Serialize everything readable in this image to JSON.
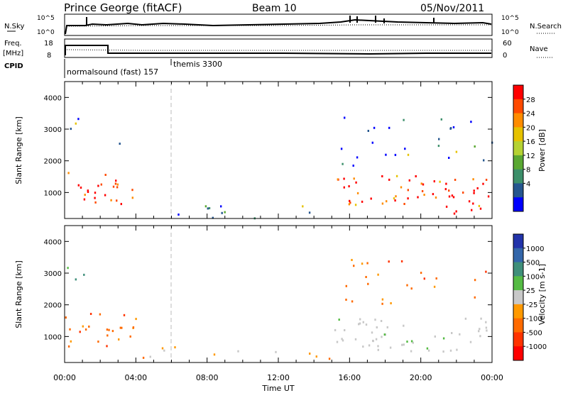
{
  "header": {
    "station": "Prince George (fitACF)",
    "beam": "Beam 10",
    "date": "05/Nov/2011"
  },
  "strip": {
    "nsky_label": "N.Sky",
    "nsky_ticks": [
      "10^5",
      "10^0"
    ],
    "nsearch_label": "N.Search",
    "nsearch_ticks": [
      "10^5",
      "10^0"
    ],
    "freq_label_1": "Freq.",
    "freq_label_2": "[MHz]",
    "freq_ticks": [
      "18",
      "8"
    ],
    "nave_label": "Nave",
    "nave_ticks": [
      "60",
      "0"
    ],
    "cpid_label": "CPID",
    "cpid_segments": [
      "normalsound (fast) 157",
      "themis 3300"
    ]
  },
  "time_axis": {
    "label": "Time UT",
    "ticks": [
      "00:00",
      "04:00",
      "08:00",
      "12:00",
      "16:00",
      "20:00",
      "00:00"
    ]
  },
  "power_colorbar": {
    "label": "Power [dB]",
    "ticks": [
      "28",
      "24",
      "20",
      "16",
      "12",
      "8",
      "4"
    ],
    "colors": [
      "#ff0000",
      "#ff4a00",
      "#ff8c00",
      "#e6c200",
      "#b5d233",
      "#5aa832",
      "#3c8f6a",
      "#25568f",
      "#0000ff"
    ]
  },
  "velocity_colorbar": {
    "label": "Velocity [m s-1]",
    "ticks": [
      "1000",
      "500",
      "100",
      "25",
      "-25",
      "-100",
      "-500",
      "-1000"
    ],
    "colors": [
      "#2233aa",
      "#3366aa",
      "#3f8f7a",
      "#55bb44",
      "#c8c8c8",
      "#ff9900",
      "#ff6a00",
      "#ff3300",
      "#ff0000"
    ]
  },
  "chart_data": [
    {
      "type": "heatmap",
      "title": "Power",
      "xlabel": "Time UT",
      "ylabel": "Slant Range [km]",
      "xlim": [
        0,
        24
      ],
      "ylim": [
        180,
        4500
      ],
      "y_ticks": [
        1000,
        2000,
        3000,
        4000
      ],
      "colorbar": "Power [dB]",
      "scatter_regions": [
        {
          "t": [
            0,
            3.9
          ],
          "r": [
            650,
            1750
          ],
          "power": "high"
        },
        {
          "t": [
            0,
            1.6
          ],
          "r": [
            2600,
            3500
          ],
          "power": "low"
        },
        {
          "t": [
            3.0,
            3.8
          ],
          "r": [
            2000,
            3000
          ],
          "power": "low"
        },
        {
          "t": [
            4.0,
            15.0
          ],
          "r": [
            180,
            700
          ],
          "power": "low"
        },
        {
          "t": [
            15.0,
            24.0
          ],
          "r": [
            550,
            1550
          ],
          "power": "high"
        },
        {
          "t": [
            15.5,
            24.0
          ],
          "r": [
            1800,
            3400
          ],
          "power": "low"
        },
        {
          "t": [
            21.5,
            23.5
          ],
          "r": [
            300,
            1100
          ],
          "power": "high"
        }
      ]
    },
    {
      "type": "heatmap",
      "title": "Velocity",
      "xlabel": "Time UT",
      "ylabel": "Slant Range [km]",
      "xlim": [
        0,
        24
      ],
      "ylim": [
        180,
        4500
      ],
      "y_ticks": [
        1000,
        2000,
        3000,
        4000
      ],
      "colorbar": "Velocity [m s-1]",
      "scatter_regions": [
        {
          "t": [
            0,
            4.0
          ],
          "r": [
            700,
            1750
          ],
          "velocity": "-100 to -500"
        },
        {
          "t": [
            0,
            1.5
          ],
          "r": [
            2600,
            3500
          ],
          "velocity": "25 to 500"
        },
        {
          "t": [
            4.0,
            15.0
          ],
          "r": [
            180,
            700
          ],
          "velocity": "-25 to -100"
        },
        {
          "t": [
            15.0,
            24.0
          ],
          "r": [
            550,
            1600
          ],
          "velocity": "-25 to 25"
        },
        {
          "t": [
            15.5,
            24.0
          ],
          "r": [
            2000,
            3500
          ],
          "velocity": "-100 to -500"
        }
      ]
    }
  ]
}
